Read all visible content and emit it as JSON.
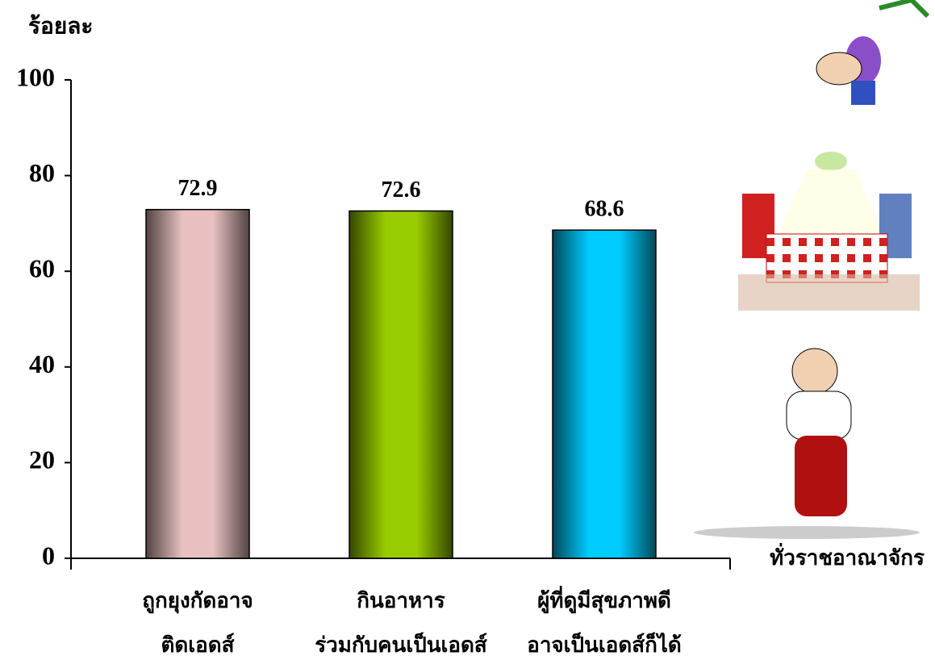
{
  "chart_data": {
    "type": "bar",
    "y_label": "ร้อยละ",
    "region_label": "ทั่วราชอาณาจักร",
    "categories": [
      [
        "ถูกยุงกัดอาจ",
        "ติดเอดส์"
      ],
      [
        "กินอาหาร",
        "ร่วมกับคนเป็นเอดส์"
      ],
      [
        "ผู้ที่ดูมีสุขภาพดี",
        "อาจเป็นเอดส์ก็ได้"
      ]
    ],
    "values": [
      72.9,
      72.6,
      68.6
    ],
    "colors": [
      "#e8c0c0",
      "#99cc00",
      "#00ccff"
    ],
    "ylim": [
      0,
      100
    ],
    "yticks": [
      0,
      20,
      40,
      60,
      80,
      100
    ]
  }
}
